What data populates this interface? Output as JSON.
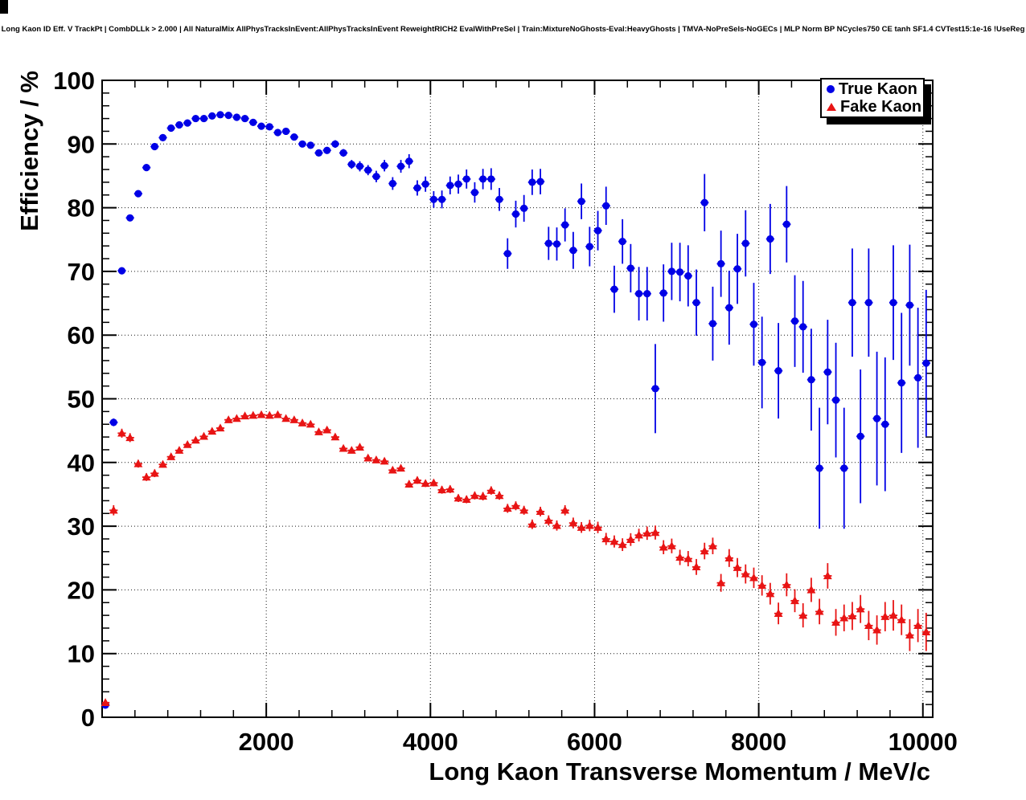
{
  "header": {
    "title": "Long Kaon ID Eff. V TrackPt | CombDLLk > 2.000 | All NaturalMix AllPhysTracksInEvent:AllPhysTracksInEvent ReweightRICH2 EvalWithPreSel | Train:MixtureNoGhosts-Eval:HeavyGhosts | TMVA-NoPreSels-NoGECs | MLP Norm BP NCycles750 CE tanh SF1.4 CVTest15:1e-16 !UseReg"
  },
  "chart_data": {
    "type": "scatter",
    "title": "Long Kaon ID Eff. V TrackPt | CombDLLk > 2.000 | All NaturalMix AllPhysTracksInEvent:AllPhysTracksInEvent ReweightRICH2 EvalWithPreSel | Train:MixtureNoGhosts-Eval:HeavyGhosts | TMVA-NoPreSels-NoGECs | MLP Norm BP NCycles750 CE tanh SF1.4 CVTest15:1e-16 !UseReg",
    "xlabel": "Long Kaon Transverse Momentum / MeV/c",
    "ylabel": "Efficiency / %",
    "xlim": [
      0,
      10120
    ],
    "ylim": [
      0,
      100
    ],
    "x_ticks": [
      2000,
      4000,
      6000,
      8000,
      10000
    ],
    "x_minor_step": 400,
    "y_ticks": [
      0,
      10,
      20,
      30,
      40,
      50,
      60,
      70,
      80,
      90,
      100
    ],
    "y_minor_step": 2,
    "grid": "dotted",
    "legend_position": "top-right",
    "bin_half_width": 50,
    "series": [
      {
        "name": "True Kaon",
        "marker": "circle",
        "color": "#0000e6",
        "points": [
          [
            40,
            1.9,
            0.3
          ],
          [
            140,
            46.3,
            0.6
          ],
          [
            240,
            70.1,
            0.5
          ],
          [
            340,
            78.4,
            0.5
          ],
          [
            440,
            82.2,
            0.4
          ],
          [
            540,
            86.3,
            0.4
          ],
          [
            640,
            89.6,
            0.4
          ],
          [
            740,
            91.0,
            0.3
          ],
          [
            840,
            92.5,
            0.3
          ],
          [
            940,
            93.0,
            0.3
          ],
          [
            1040,
            93.3,
            0.3
          ],
          [
            1140,
            94.0,
            0.3
          ],
          [
            1240,
            94.0,
            0.3
          ],
          [
            1340,
            94.4,
            0.3
          ],
          [
            1440,
            94.6,
            0.3
          ],
          [
            1540,
            94.5,
            0.3
          ],
          [
            1640,
            94.2,
            0.3
          ],
          [
            1740,
            94.0,
            0.3
          ],
          [
            1840,
            93.4,
            0.3
          ],
          [
            1940,
            92.8,
            0.3
          ],
          [
            2040,
            92.7,
            0.4
          ],
          [
            2140,
            91.8,
            0.4
          ],
          [
            2240,
            92.0,
            0.4
          ],
          [
            2340,
            91.1,
            0.4
          ],
          [
            2440,
            90.0,
            0.5
          ],
          [
            2540,
            89.8,
            0.5
          ],
          [
            2640,
            88.6,
            0.5
          ],
          [
            2740,
            89.0,
            0.5
          ],
          [
            2840,
            90.0,
            0.6
          ],
          [
            2940,
            88.6,
            0.6
          ],
          [
            3040,
            86.8,
            0.7
          ],
          [
            3140,
            86.5,
            0.8
          ],
          [
            3240,
            85.9,
            0.8
          ],
          [
            3340,
            84.9,
            0.9
          ],
          [
            3440,
            86.6,
            0.9
          ],
          [
            3540,
            83.8,
            1.0
          ],
          [
            3640,
            86.5,
            1.0
          ],
          [
            3740,
            87.3,
            1.1
          ],
          [
            3840,
            83.1,
            1.2
          ],
          [
            3940,
            83.7,
            1.2
          ],
          [
            4040,
            81.3,
            1.3
          ],
          [
            4140,
            81.3,
            1.4
          ],
          [
            4240,
            83.5,
            1.4
          ],
          [
            4340,
            83.7,
            1.5
          ],
          [
            4440,
            84.5,
            1.5
          ],
          [
            4540,
            82.4,
            1.6
          ],
          [
            4640,
            84.5,
            1.6
          ],
          [
            4740,
            84.5,
            1.7
          ],
          [
            4840,
            81.3,
            1.8
          ],
          [
            4940,
            72.8,
            2.4
          ],
          [
            5040,
            79.0,
            2.1
          ],
          [
            5140,
            79.9,
            2.1
          ],
          [
            5240,
            84.0,
            2.0
          ],
          [
            5340,
            84.1,
            2.0
          ],
          [
            5440,
            74.4,
            2.6
          ],
          [
            5540,
            74.3,
            2.6
          ],
          [
            5640,
            77.3,
            2.6
          ],
          [
            5740,
            73.3,
            2.9
          ],
          [
            5840,
            81.0,
            2.8
          ],
          [
            5940,
            73.9,
            3.1
          ],
          [
            6040,
            76.4,
            3.1
          ],
          [
            6140,
            80.3,
            3.0
          ],
          [
            6240,
            67.2,
            3.7
          ],
          [
            6340,
            74.7,
            3.5
          ],
          [
            6440,
            70.5,
            3.8
          ],
          [
            6540,
            66.5,
            4.2
          ],
          [
            6640,
            66.5,
            4.2
          ],
          [
            6740,
            51.6,
            7.0
          ],
          [
            6840,
            66.6,
            4.5
          ],
          [
            6940,
            70.0,
            4.5
          ],
          [
            7040,
            69.9,
            4.6
          ],
          [
            7140,
            69.3,
            4.8
          ],
          [
            7240,
            65.1,
            5.2
          ],
          [
            7340,
            80.8,
            4.5
          ],
          [
            7440,
            61.8,
            5.8
          ],
          [
            7540,
            71.2,
            5.2
          ],
          [
            7640,
            64.3,
            5.8
          ],
          [
            7740,
            70.4,
            5.5
          ],
          [
            7840,
            74.4,
            5.2
          ],
          [
            7940,
            61.7,
            6.5
          ],
          [
            8040,
            55.7,
            7.2
          ],
          [
            8140,
            75.1,
            5.5
          ],
          [
            8240,
            54.4,
            7.5
          ],
          [
            8340,
            77.4,
            6.0
          ],
          [
            8440,
            62.2,
            7.2
          ],
          [
            8540,
            61.3,
            7.2
          ],
          [
            8640,
            53.0,
            8.0
          ],
          [
            8740,
            39.1,
            9.5
          ],
          [
            8840,
            54.2,
            8.2
          ],
          [
            8940,
            49.8,
            9.0
          ],
          [
            9040,
            39.1,
            9.5
          ],
          [
            9140,
            65.1,
            8.5
          ],
          [
            9240,
            44.1,
            10.5
          ],
          [
            9340,
            65.1,
            8.5
          ],
          [
            9440,
            46.9,
            10.5
          ],
          [
            9540,
            46.0,
            10.5
          ],
          [
            9640,
            65.1,
            9.0
          ],
          [
            9740,
            52.5,
            11.0
          ],
          [
            9840,
            64.7,
            9.5
          ],
          [
            9940,
            53.3,
            11.0
          ],
          [
            10040,
            55.6,
            11.5
          ]
        ]
      },
      {
        "name": "Fake Kaon",
        "marker": "triangle",
        "color": "#e81414",
        "points": [
          [
            40,
            2.3,
            0.3
          ],
          [
            140,
            32.5,
            0.8
          ],
          [
            240,
            44.6,
            0.7
          ],
          [
            340,
            43.9,
            0.7
          ],
          [
            440,
            39.8,
            0.6
          ],
          [
            540,
            37.7,
            0.6
          ],
          [
            640,
            38.3,
            0.6
          ],
          [
            740,
            39.7,
            0.5
          ],
          [
            840,
            40.9,
            0.5
          ],
          [
            940,
            41.9,
            0.4
          ],
          [
            1040,
            42.8,
            0.4
          ],
          [
            1140,
            43.5,
            0.4
          ],
          [
            1240,
            44.1,
            0.4
          ],
          [
            1340,
            44.9,
            0.4
          ],
          [
            1440,
            45.4,
            0.4
          ],
          [
            1540,
            46.7,
            0.4
          ],
          [
            1640,
            46.9,
            0.35
          ],
          [
            1740,
            47.3,
            0.35
          ],
          [
            1840,
            47.4,
            0.35
          ],
          [
            1940,
            47.5,
            0.35
          ],
          [
            2040,
            47.4,
            0.35
          ],
          [
            2140,
            47.5,
            0.35
          ],
          [
            2240,
            46.9,
            0.35
          ],
          [
            2340,
            46.7,
            0.4
          ],
          [
            2440,
            46.2,
            0.4
          ],
          [
            2540,
            46.0,
            0.4
          ],
          [
            2640,
            44.8,
            0.4
          ],
          [
            2740,
            45.1,
            0.4
          ],
          [
            2840,
            44.0,
            0.4
          ],
          [
            2940,
            42.2,
            0.45
          ],
          [
            3040,
            41.9,
            0.45
          ],
          [
            3140,
            42.4,
            0.45
          ],
          [
            3240,
            40.7,
            0.45
          ],
          [
            3340,
            40.4,
            0.5
          ],
          [
            3440,
            40.2,
            0.5
          ],
          [
            3540,
            38.8,
            0.5
          ],
          [
            3640,
            39.1,
            0.5
          ],
          [
            3740,
            36.6,
            0.55
          ],
          [
            3840,
            37.2,
            0.55
          ],
          [
            3940,
            36.7,
            0.55
          ],
          [
            4040,
            36.8,
            0.55
          ],
          [
            4140,
            35.7,
            0.6
          ],
          [
            4240,
            35.8,
            0.6
          ],
          [
            4340,
            34.4,
            0.6
          ],
          [
            4440,
            34.2,
            0.6
          ],
          [
            4540,
            34.8,
            0.6
          ],
          [
            4640,
            34.7,
            0.65
          ],
          [
            4740,
            35.6,
            0.65
          ],
          [
            4840,
            34.8,
            0.65
          ],
          [
            4940,
            32.8,
            0.7
          ],
          [
            5040,
            33.2,
            0.7
          ],
          [
            5140,
            32.5,
            0.7
          ],
          [
            5240,
            30.3,
            0.75
          ],
          [
            5340,
            32.3,
            0.75
          ],
          [
            5440,
            30.9,
            0.8
          ],
          [
            5540,
            30.1,
            0.8
          ],
          [
            5640,
            32.5,
            0.8
          ],
          [
            5740,
            30.5,
            0.85
          ],
          [
            5840,
            29.8,
            0.85
          ],
          [
            5940,
            30.1,
            0.9
          ],
          [
            6040,
            29.8,
            0.9
          ],
          [
            6140,
            28.0,
            0.95
          ],
          [
            6240,
            27.6,
            0.95
          ],
          [
            6340,
            27.1,
            1.0
          ],
          [
            6440,
            27.9,
            1.0
          ],
          [
            6540,
            28.6,
            1.0
          ],
          [
            6640,
            28.9,
            1.05
          ],
          [
            6740,
            29.0,
            1.1
          ],
          [
            6840,
            26.7,
            1.1
          ],
          [
            6940,
            26.9,
            1.15
          ],
          [
            7040,
            25.1,
            1.2
          ],
          [
            7140,
            24.9,
            1.2
          ],
          [
            7240,
            23.6,
            1.25
          ],
          [
            7340,
            26.1,
            1.3
          ],
          [
            7440,
            26.9,
            1.3
          ],
          [
            7540,
            21.1,
            1.4
          ],
          [
            7640,
            25.0,
            1.4
          ],
          [
            7740,
            23.5,
            1.5
          ],
          [
            7840,
            22.5,
            1.5
          ],
          [
            7940,
            21.9,
            1.6
          ],
          [
            8040,
            20.7,
            1.6
          ],
          [
            8140,
            19.4,
            1.7
          ],
          [
            8240,
            16.3,
            1.7
          ],
          [
            8340,
            20.8,
            1.8
          ],
          [
            8440,
            18.3,
            1.8
          ],
          [
            8540,
            16.0,
            1.9
          ],
          [
            8640,
            20.0,
            1.9
          ],
          [
            8740,
            16.6,
            2.0
          ],
          [
            8840,
            22.2,
            2.0
          ],
          [
            8940,
            14.9,
            2.1
          ],
          [
            9040,
            15.6,
            2.1
          ],
          [
            9140,
            15.9,
            2.2
          ],
          [
            9240,
            17.0,
            2.2
          ],
          [
            9340,
            14.4,
            2.3
          ],
          [
            9440,
            13.7,
            2.3
          ],
          [
            9540,
            15.8,
            2.3
          ],
          [
            9640,
            16.0,
            2.4
          ],
          [
            9740,
            15.3,
            2.4
          ],
          [
            9840,
            12.9,
            2.5
          ],
          [
            9940,
            14.4,
            2.6
          ],
          [
            10040,
            13.4,
            3.0
          ]
        ]
      }
    ]
  },
  "legend": {
    "entries": [
      {
        "label": "True Kaon",
        "marker": "circle-icon",
        "color": "#0000e6"
      },
      {
        "label": "Fake Kaon",
        "marker": "triangle-icon",
        "color": "#e81414"
      }
    ]
  },
  "colors": {
    "frame": "#000000",
    "grid": "#000000",
    "background": "#ffffff"
  }
}
